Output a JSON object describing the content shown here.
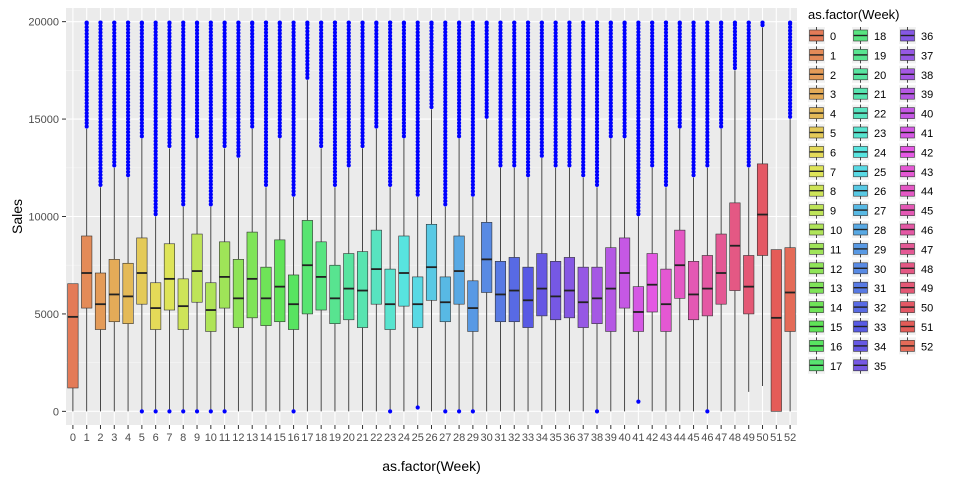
{
  "chart_data": {
    "type": "boxplot",
    "xlabel": "as.factor(Week)",
    "ylabel": "Sales",
    "legend_title": "as.factor(Week)",
    "legend_placement": "right",
    "ylim": [
      -700,
      20700
    ],
    "yticks": [
      0,
      5000,
      10000,
      15000,
      20000
    ],
    "grid": true,
    "outlier_color": "#0000ff",
    "panel_background": "#ebebeb",
    "categories": [
      "0",
      "1",
      "2",
      "3",
      "4",
      "5",
      "6",
      "7",
      "8",
      "9",
      "10",
      "11",
      "12",
      "13",
      "14",
      "15",
      "16",
      "17",
      "18",
      "19",
      "20",
      "21",
      "22",
      "23",
      "24",
      "25",
      "26",
      "27",
      "28",
      "29",
      "30",
      "31",
      "32",
      "33",
      "34",
      "35",
      "36",
      "37",
      "38",
      "39",
      "40",
      "41",
      "42",
      "43",
      "44",
      "45",
      "46",
      "47",
      "48",
      "49",
      "50",
      "51",
      "52"
    ],
    "boxes": [
      {
        "week": "0",
        "min": 0,
        "q1": 1200,
        "median": 4850,
        "q3": 6550,
        "max": 6550,
        "outliers": "none"
      },
      {
        "week": "1",
        "min": 0,
        "q1": 5300,
        "median": 7100,
        "q3": 9000,
        "max": 14500,
        "outliers": "high"
      },
      {
        "week": "2",
        "min": 0,
        "q1": 4200,
        "median": 5500,
        "q3": 7100,
        "max": 11500,
        "outliers": "high"
      },
      {
        "week": "3",
        "min": 0,
        "q1": 4600,
        "median": 6000,
        "q3": 7800,
        "max": 12500,
        "outliers": "high"
      },
      {
        "week": "4",
        "min": 0,
        "q1": 4500,
        "median": 5900,
        "q3": 7600,
        "max": 12000,
        "outliers": "high"
      },
      {
        "week": "5",
        "min": 100,
        "q1": 5500,
        "median": 7100,
        "q3": 8900,
        "max": 14000,
        "outliers": "both"
      },
      {
        "week": "6",
        "min": 100,
        "q1": 4200,
        "median": 5300,
        "q3": 6600,
        "max": 10000,
        "outliers": "both"
      },
      {
        "week": "7",
        "min": 100,
        "q1": 5200,
        "median": 6800,
        "q3": 8600,
        "max": 13500,
        "outliers": "both"
      },
      {
        "week": "8",
        "min": 100,
        "q1": 4200,
        "median": 5400,
        "q3": 6800,
        "max": 10500,
        "outliers": "both"
      },
      {
        "week": "9",
        "min": 100,
        "q1": 5600,
        "median": 7200,
        "q3": 9100,
        "max": 14000,
        "outliers": "both"
      },
      {
        "week": "10",
        "min": 100,
        "q1": 4100,
        "median": 5200,
        "q3": 6600,
        "max": 10500,
        "outliers": "both"
      },
      {
        "week": "11",
        "min": 100,
        "q1": 5300,
        "median": 6900,
        "q3": 8700,
        "max": 13500,
        "outliers": "both"
      },
      {
        "week": "12",
        "min": 0,
        "q1": 4300,
        "median": 5800,
        "q3": 7800,
        "max": 13000,
        "outliers": "high"
      },
      {
        "week": "13",
        "min": 0,
        "q1": 4800,
        "median": 6800,
        "q3": 9200,
        "max": 14500,
        "outliers": "high"
      },
      {
        "week": "14",
        "min": 0,
        "q1": 4400,
        "median": 5800,
        "q3": 7400,
        "max": 11500,
        "outliers": "high"
      },
      {
        "week": "15",
        "min": 0,
        "q1": 4600,
        "median": 6400,
        "q3": 8800,
        "max": 14000,
        "outliers": "high"
      },
      {
        "week": "16",
        "min": 100,
        "q1": 4200,
        "median": 5500,
        "q3": 7000,
        "max": 11000,
        "outliers": "both"
      },
      {
        "week": "17",
        "min": 0,
        "q1": 5000,
        "median": 7500,
        "q3": 9800,
        "max": 17000,
        "outliers": "high"
      },
      {
        "week": "18",
        "min": 0,
        "q1": 5200,
        "median": 6900,
        "q3": 8700,
        "max": 13500,
        "outliers": "high"
      },
      {
        "week": "19",
        "min": 0,
        "q1": 4500,
        "median": 5800,
        "q3": 7500,
        "max": 11500,
        "outliers": "high"
      },
      {
        "week": "20",
        "min": 0,
        "q1": 4700,
        "median": 6300,
        "q3": 8100,
        "max": 12500,
        "outliers": "high"
      },
      {
        "week": "21",
        "min": 0,
        "q1": 4300,
        "median": 6200,
        "q3": 8200,
        "max": 13500,
        "outliers": "high"
      },
      {
        "week": "22",
        "min": 0,
        "q1": 5500,
        "median": 7300,
        "q3": 9300,
        "max": 14500,
        "outliers": "high"
      },
      {
        "week": "23",
        "min": 100,
        "q1": 4200,
        "median": 5500,
        "q3": 7300,
        "max": 11500,
        "outliers": "both"
      },
      {
        "week": "24",
        "min": 0,
        "q1": 5400,
        "median": 7100,
        "q3": 9000,
        "max": 14000,
        "outliers": "high"
      },
      {
        "week": "25",
        "min": 300,
        "q1": 4300,
        "median": 5500,
        "q3": 6900,
        "max": 11000,
        "outliers": "both"
      },
      {
        "week": "26",
        "min": 0,
        "q1": 5700,
        "median": 7400,
        "q3": 9600,
        "max": 15500,
        "outliers": "high"
      },
      {
        "week": "27",
        "min": 100,
        "q1": 4600,
        "median": 5600,
        "q3": 6900,
        "max": 10500,
        "outliers": "both"
      },
      {
        "week": "28",
        "min": 100,
        "q1": 5500,
        "median": 7200,
        "q3": 9000,
        "max": 14000,
        "outliers": "both"
      },
      {
        "week": "29",
        "min": 100,
        "q1": 4100,
        "median": 5300,
        "q3": 6700,
        "max": 11000,
        "outliers": "both"
      },
      {
        "week": "30",
        "min": 0,
        "q1": 6100,
        "median": 7800,
        "q3": 9700,
        "max": 15000,
        "outliers": "high"
      },
      {
        "week": "31",
        "min": 0,
        "q1": 4600,
        "median": 6000,
        "q3": 7700,
        "max": 12500,
        "outliers": "high"
      },
      {
        "week": "32",
        "min": 0,
        "q1": 4600,
        "median": 6200,
        "q3": 7900,
        "max": 12500,
        "outliers": "high"
      },
      {
        "week": "33",
        "min": 0,
        "q1": 4300,
        "median": 5700,
        "q3": 7400,
        "max": 12000,
        "outliers": "high"
      },
      {
        "week": "34",
        "min": 0,
        "q1": 4900,
        "median": 6300,
        "q3": 8100,
        "max": 13000,
        "outliers": "high"
      },
      {
        "week": "35",
        "min": 0,
        "q1": 4700,
        "median": 5900,
        "q3": 7700,
        "max": 12500,
        "outliers": "high"
      },
      {
        "week": "36",
        "min": 0,
        "q1": 4800,
        "median": 6200,
        "q3": 7900,
        "max": 12500,
        "outliers": "high"
      },
      {
        "week": "37",
        "min": 0,
        "q1": 4300,
        "median": 5600,
        "q3": 7400,
        "max": 12000,
        "outliers": "high"
      },
      {
        "week": "38",
        "min": 100,
        "q1": 4500,
        "median": 5800,
        "q3": 7400,
        "max": 11500,
        "outliers": "both"
      },
      {
        "week": "39",
        "min": 0,
        "q1": 4100,
        "median": 6300,
        "q3": 8400,
        "max": 14000,
        "outliers": "high"
      },
      {
        "week": "40",
        "min": 0,
        "q1": 5300,
        "median": 7100,
        "q3": 8900,
        "max": 14000,
        "outliers": "high"
      },
      {
        "week": "41",
        "min": 600,
        "q1": 4100,
        "median": 5100,
        "q3": 6400,
        "max": 10000,
        "outliers": "both"
      },
      {
        "week": "42",
        "min": 0,
        "q1": 5100,
        "median": 6500,
        "q3": 8100,
        "max": 12500,
        "outliers": "high"
      },
      {
        "week": "43",
        "min": 0,
        "q1": 4100,
        "median": 5500,
        "q3": 7300,
        "max": 11500,
        "outliers": "high"
      },
      {
        "week": "44",
        "min": 0,
        "q1": 5800,
        "median": 7500,
        "q3": 9300,
        "max": 14500,
        "outliers": "high"
      },
      {
        "week": "45",
        "min": 0,
        "q1": 4700,
        "median": 6000,
        "q3": 7700,
        "max": 12000,
        "outliers": "high"
      },
      {
        "week": "46",
        "min": 100,
        "q1": 4900,
        "median": 6300,
        "q3": 8000,
        "max": 12500,
        "outliers": "both"
      },
      {
        "week": "47",
        "min": 0,
        "q1": 5500,
        "median": 7100,
        "q3": 9100,
        "max": 14500,
        "outliers": "high"
      },
      {
        "week": "48",
        "min": 0,
        "q1": 6200,
        "median": 8500,
        "q3": 10700,
        "max": 17500,
        "outliers": "high"
      },
      {
        "week": "49",
        "min": 1000,
        "q1": 5000,
        "median": 6400,
        "q3": 8000,
        "max": 12500,
        "outliers": "high"
      },
      {
        "week": "50",
        "min": 1300,
        "q1": 8000,
        "median": 10100,
        "q3": 12700,
        "max": 19700,
        "outliers": "high"
      },
      {
        "week": "51",
        "min": 0,
        "q1": 0,
        "median": 4800,
        "q3": 8300,
        "max": 8300,
        "outliers": "none"
      },
      {
        "week": "52",
        "min": 0,
        "q1": 4100,
        "median": 6100,
        "q3": 8400,
        "max": 15000,
        "outliers": "high"
      }
    ]
  }
}
